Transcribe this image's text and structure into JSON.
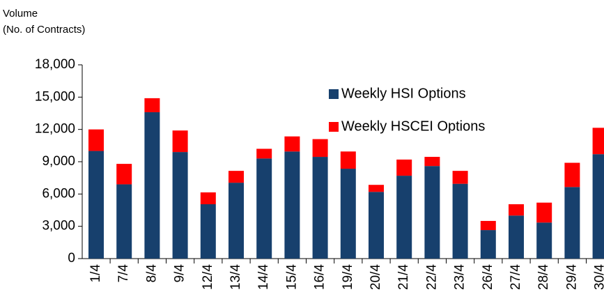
{
  "chart_data": {
    "type": "stacked_bar",
    "y_label": [
      "Volume",
      "(No. of Contracts)"
    ],
    "categories": [
      "1/4",
      "7/4",
      "8/4",
      "9/4",
      "12/4",
      "13/4",
      "14/4",
      "15/4",
      "16/4",
      "19/4",
      "20/4",
      "21/4",
      "22/4",
      "23/4",
      "26/4",
      "27/4",
      "28/4",
      "29/4",
      "30/4"
    ],
    "series": [
      {
        "name": "Weekly HSI Options",
        "color": "#17406d",
        "values": [
          10000,
          6900,
          13600,
          9900,
          5050,
          7050,
          9300,
          9950,
          9450,
          8350,
          6200,
          7700,
          8600,
          6950,
          2650,
          4000,
          3350,
          6650,
          9700
        ]
      },
      {
        "name": "Weekly HSCEI Options",
        "color": "#ff0000",
        "values": [
          2000,
          1900,
          1300,
          2000,
          1100,
          1100,
          900,
          1400,
          1650,
          1600,
          650,
          1500,
          850,
          1200,
          850,
          1050,
          1850,
          2250,
          2450
        ]
      }
    ],
    "ylim": [
      0,
      18000
    ],
    "yticks": [
      0,
      {
        "value": 3000,
        "label": "3,000"
      },
      {
        "value": 6000,
        "label": "6,000"
      },
      {
        "value": 9000,
        "label": "9,000"
      },
      {
        "value": 12000,
        "label": "12,000"
      },
      {
        "value": 15000,
        "label": "15,000"
      },
      {
        "value": 18000,
        "label": "18,000"
      }
    ],
    "legend": "upper-center"
  }
}
